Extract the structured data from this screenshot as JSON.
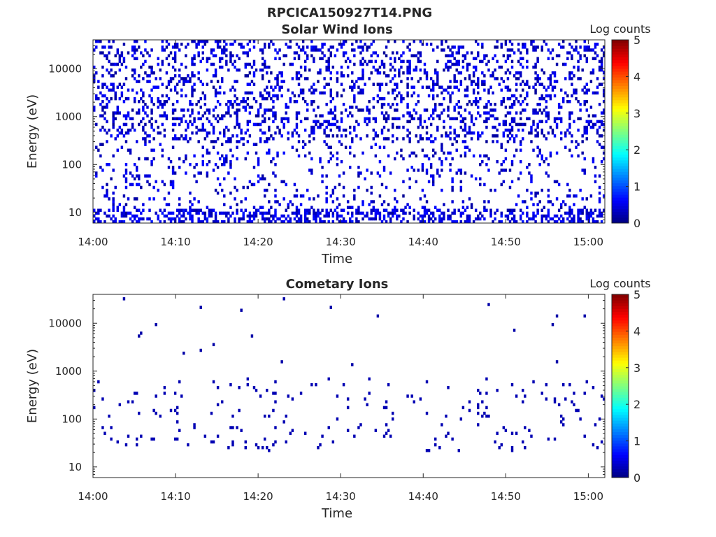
{
  "figure": {
    "title": "RPCICA150927T14.PNG"
  },
  "colors": {
    "colormap": "jet",
    "axis": "#262626",
    "background": "#ffffff"
  },
  "chart_data": [
    {
      "type": "heatmap",
      "title": "Solar Wind Ions",
      "xlabel": "Time",
      "ylabel": "Energy (eV)",
      "y_scale": "log",
      "ylim": [
        6,
        40000
      ],
      "xlim": [
        "14:00",
        "15:02"
      ],
      "x_ticks": [
        "14:00",
        "14:10",
        "14:20",
        "14:30",
        "14:40",
        "14:50",
        "15:00"
      ],
      "y_ticks": [
        "10",
        "100",
        "1000",
        "10000"
      ],
      "colorbar": {
        "label": "Log counts",
        "range": [
          0,
          5
        ],
        "ticks": [
          "0",
          "1",
          "2",
          "3",
          "4",
          "5"
        ]
      },
      "pattern": "sparse",
      "bursts_minutes": [
        2.8,
        6.4,
        9.6,
        12.8,
        15.8,
        19.6,
        22.2,
        25.4,
        28.4,
        31.6,
        35.2,
        38.6,
        41.8,
        45.2,
        48.0,
        51.2,
        54.4,
        57.6,
        60.4
      ]
    },
    {
      "type": "heatmap",
      "title": "Cometary Ions",
      "xlabel": "Time",
      "ylabel": "Energy (eV)",
      "y_scale": "log",
      "ylim": [
        6,
        40000
      ],
      "xlim": [
        "14:00",
        "15:02"
      ],
      "x_ticks": [
        "14:00",
        "14:10",
        "14:20",
        "14:30",
        "14:40",
        "14:50",
        "15:00"
      ],
      "y_ticks": [
        "10",
        "100",
        "1000",
        "10000"
      ],
      "colorbar": {
        "label": "Log counts",
        "range": [
          0,
          5
        ],
        "ticks": [
          "0",
          "1",
          "2",
          "3",
          "4",
          "5"
        ]
      },
      "pattern": "bursts",
      "bursts_minutes": [
        0.4,
        2.8,
        6.4,
        9.6,
        12.8,
        15.8,
        19.6,
        22.2,
        25.4,
        28.4,
        31.6,
        35.2,
        38.6,
        41.8,
        45.2,
        48.0,
        51.2,
        54.4,
        57.6,
        60.4
      ]
    }
  ]
}
